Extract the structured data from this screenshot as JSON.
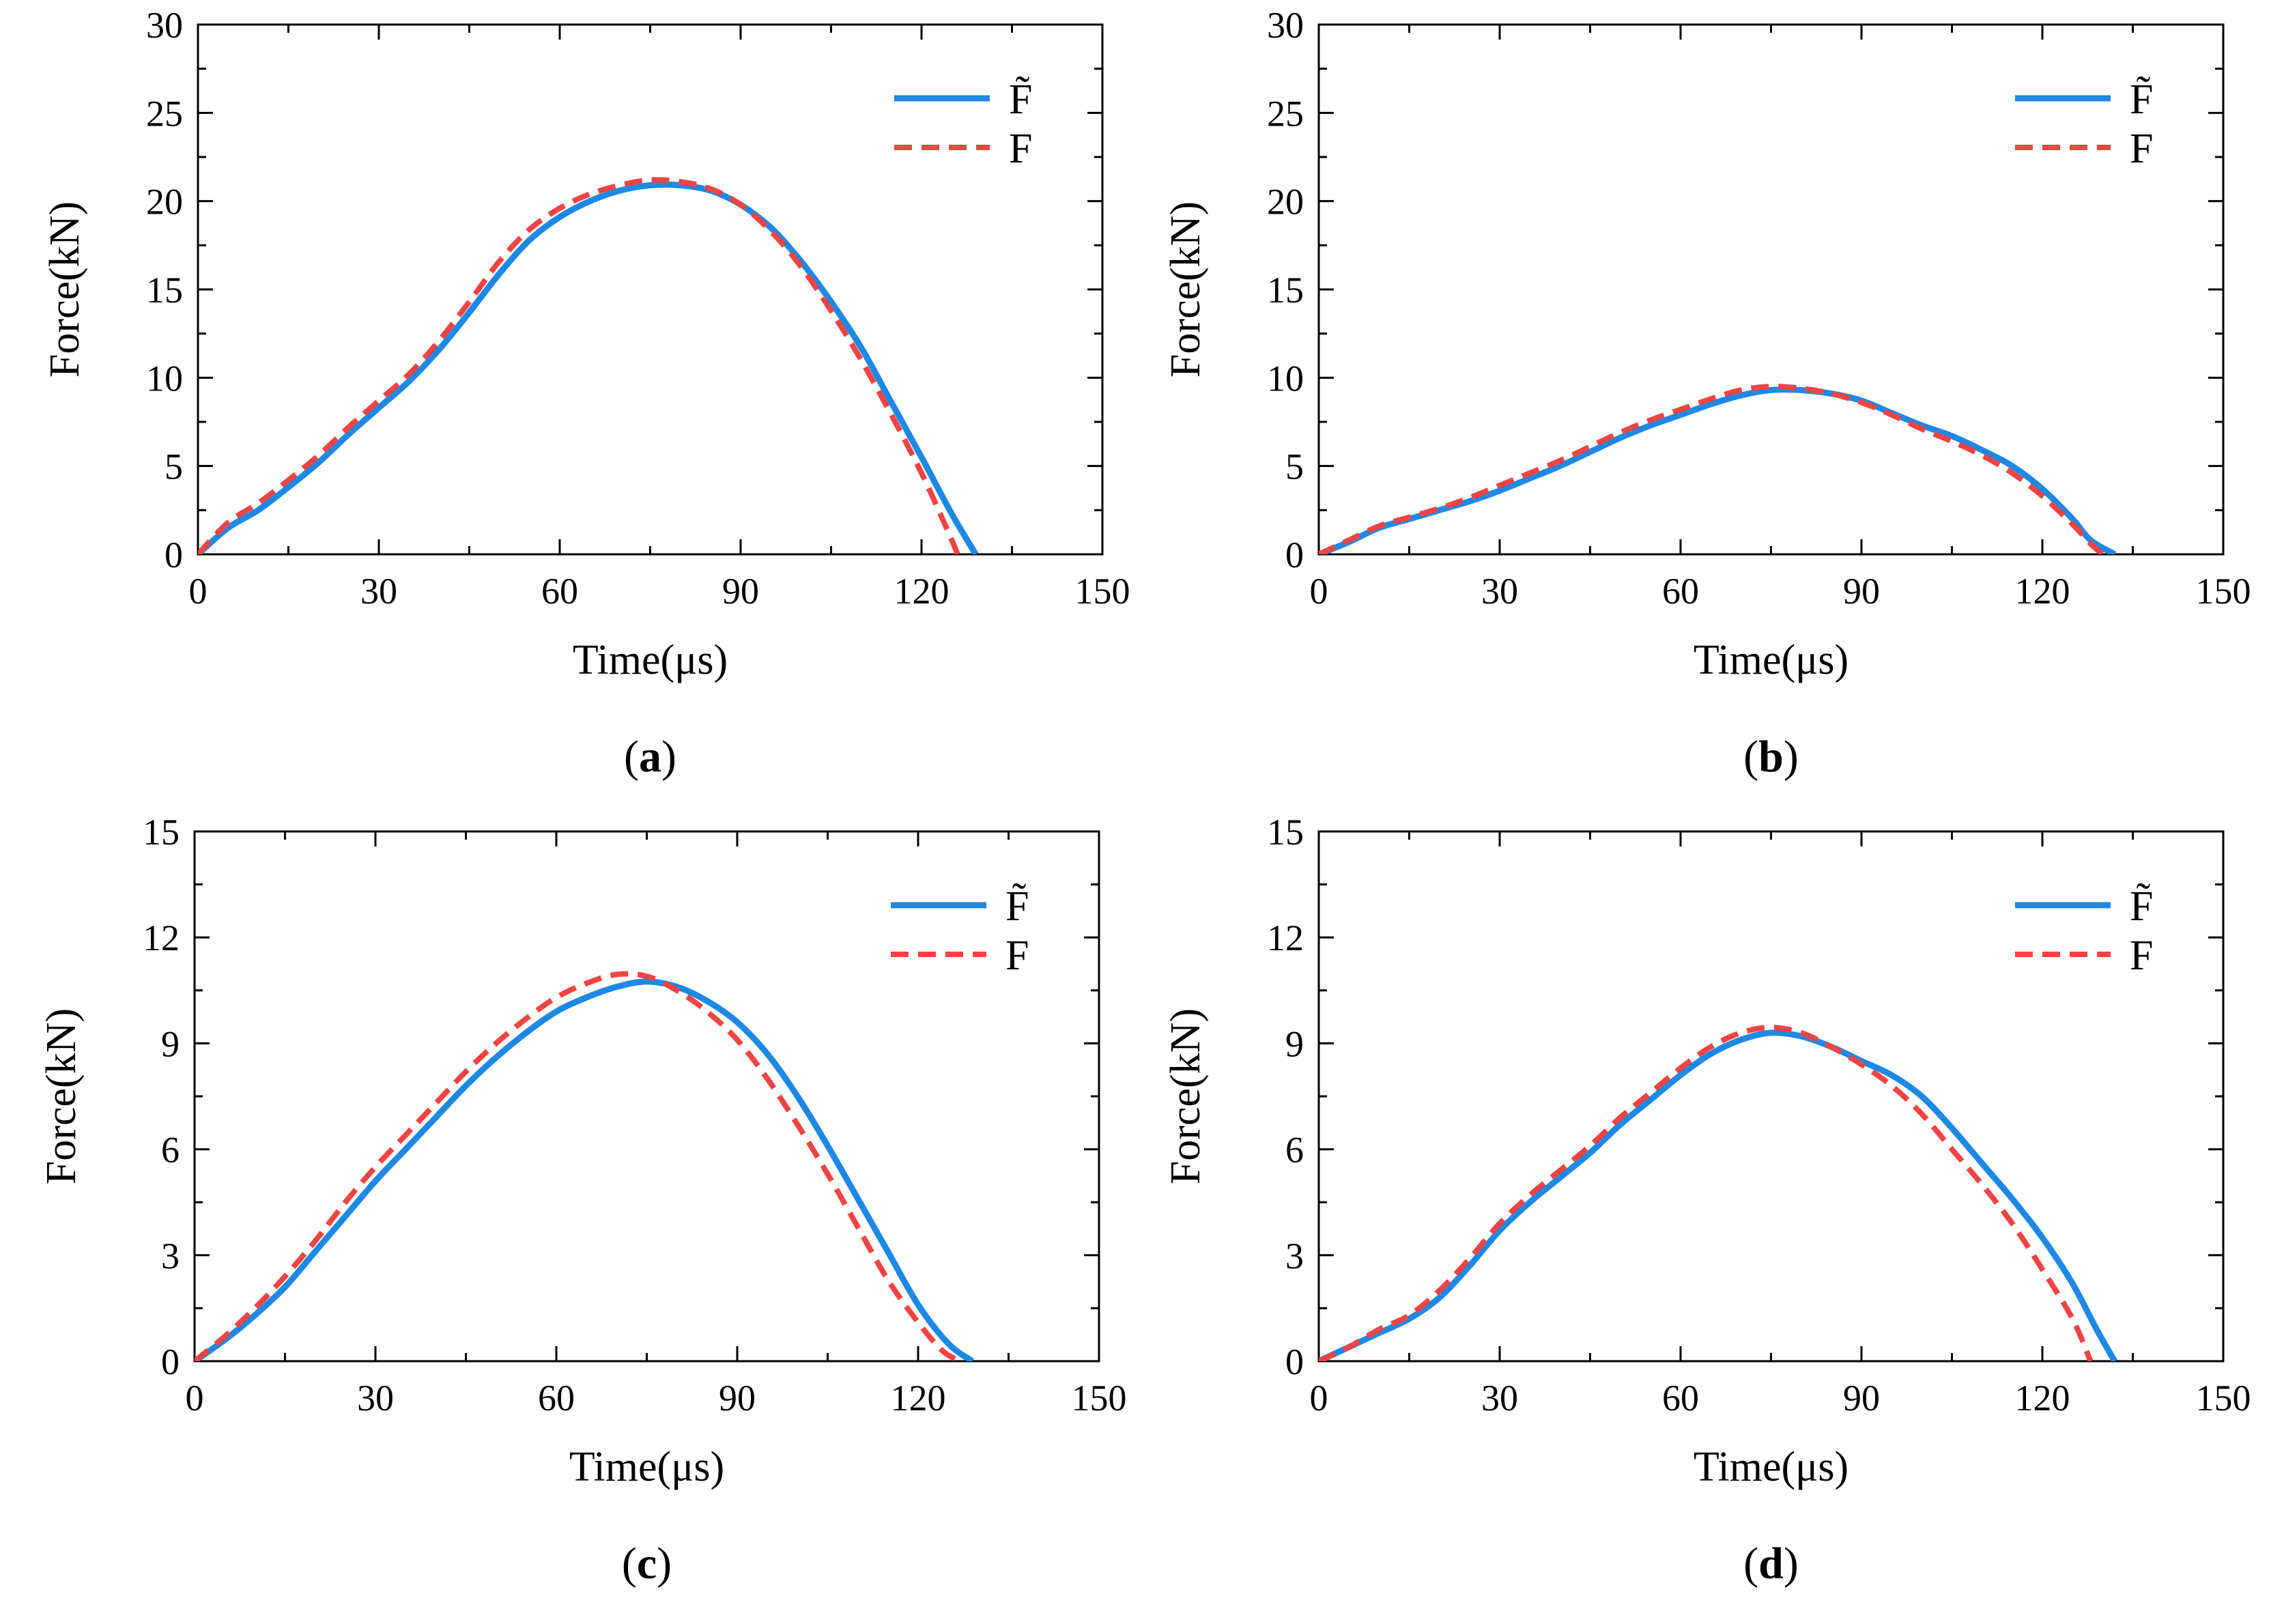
{
  "chart_data": [
    {
      "type": "line",
      "panel_label": "a",
      "xlabel": "Time(μs)",
      "ylabel": "Force(kN)",
      "xlim": [
        0,
        150
      ],
      "ylim": [
        0,
        30
      ],
      "xticks": [
        0,
        30,
        60,
        90,
        120,
        150
      ],
      "yticks": [
        0,
        5,
        10,
        15,
        20,
        25,
        30
      ],
      "grid": false,
      "legend_position": "top-right",
      "series": [
        {
          "name": "F̃",
          "color": "#1e88e5",
          "style": "solid",
          "points": [
            [
              0,
              0
            ],
            [
              5,
              1.5
            ],
            [
              10,
              2.5
            ],
            [
              15,
              3.8
            ],
            [
              20,
              5.2
            ],
            [
              25,
              6.8
            ],
            [
              30,
              8.3
            ],
            [
              35,
              9.8
            ],
            [
              40,
              11.6
            ],
            [
              45,
              13.7
            ],
            [
              50,
              15.9
            ],
            [
              55,
              17.8
            ],
            [
              60,
              19.1
            ],
            [
              65,
              20.0
            ],
            [
              70,
              20.6
            ],
            [
              75,
              20.9
            ],
            [
              80,
              20.9
            ],
            [
              85,
              20.6
            ],
            [
              90,
              19.8
            ],
            [
              95,
              18.5
            ],
            [
              100,
              16.6
            ],
            [
              105,
              14.3
            ],
            [
              110,
              11.7
            ],
            [
              115,
              8.6
            ],
            [
              120,
              5.5
            ],
            [
              125,
              2.3
            ],
            [
              129,
              0
            ]
          ]
        },
        {
          "name": "F",
          "color": "#ef4444",
          "style": "dashed",
          "points": [
            [
              0,
              0
            ],
            [
              5,
              1.8
            ],
            [
              10,
              2.9
            ],
            [
              15,
              4.2
            ],
            [
              20,
              5.6
            ],
            [
              25,
              7.2
            ],
            [
              30,
              8.7
            ],
            [
              35,
              10.2
            ],
            [
              40,
              12.1
            ],
            [
              45,
              14.3
            ],
            [
              50,
              16.6
            ],
            [
              55,
              18.4
            ],
            [
              60,
              19.6
            ],
            [
              65,
              20.4
            ],
            [
              70,
              20.9
            ],
            [
              75,
              21.2
            ],
            [
              80,
              21.1
            ],
            [
              85,
              20.7
            ],
            [
              90,
              19.8
            ],
            [
              95,
              18.3
            ],
            [
              100,
              16.3
            ],
            [
              105,
              13.8
            ],
            [
              110,
              11.0
            ],
            [
              115,
              7.9
            ],
            [
              120,
              4.6
            ],
            [
              124,
              1.6
            ],
            [
              126,
              0
            ]
          ]
        }
      ]
    },
    {
      "type": "line",
      "panel_label": "b",
      "xlabel": "Time(μs)",
      "ylabel": "Force(kN)",
      "xlim": [
        0,
        150
      ],
      "ylim": [
        0,
        30
      ],
      "xticks": [
        0,
        30,
        60,
        90,
        120,
        150
      ],
      "yticks": [
        0,
        5,
        10,
        15,
        20,
        25,
        30
      ],
      "grid": false,
      "legend_position": "top-right",
      "series": [
        {
          "name": "F̃",
          "color": "#1e88e5",
          "style": "solid",
          "points": [
            [
              0,
              0
            ],
            [
              5,
              0.7
            ],
            [
              10,
              1.5
            ],
            [
              15,
              2.0
            ],
            [
              20,
              2.5
            ],
            [
              25,
              3.0
            ],
            [
              30,
              3.6
            ],
            [
              35,
              4.3
            ],
            [
              40,
              5.0
            ],
            [
              45,
              5.8
            ],
            [
              50,
              6.6
            ],
            [
              55,
              7.3
            ],
            [
              60,
              7.9
            ],
            [
              65,
              8.5
            ],
            [
              70,
              9.0
            ],
            [
              75,
              9.3
            ],
            [
              80,
              9.3
            ],
            [
              85,
              9.1
            ],
            [
              90,
              8.7
            ],
            [
              95,
              8.0
            ],
            [
              100,
              7.3
            ],
            [
              105,
              6.7
            ],
            [
              110,
              5.9
            ],
            [
              115,
              5.0
            ],
            [
              120,
              3.7
            ],
            [
              125,
              2.0
            ],
            [
              128,
              0.8
            ],
            [
              132,
              0
            ]
          ]
        },
        {
          "name": "F",
          "color": "#ef4444",
          "style": "dashed",
          "points": [
            [
              0,
              0
            ],
            [
              5,
              0.8
            ],
            [
              10,
              1.6
            ],
            [
              15,
              2.1
            ],
            [
              20,
              2.6
            ],
            [
              25,
              3.2
            ],
            [
              30,
              3.9
            ],
            [
              35,
              4.6
            ],
            [
              40,
              5.3
            ],
            [
              45,
              6.1
            ],
            [
              50,
              6.9
            ],
            [
              55,
              7.6
            ],
            [
              60,
              8.2
            ],
            [
              65,
              8.8
            ],
            [
              70,
              9.3
            ],
            [
              75,
              9.5
            ],
            [
              80,
              9.4
            ],
            [
              85,
              9.1
            ],
            [
              90,
              8.6
            ],
            [
              95,
              7.9
            ],
            [
              100,
              7.1
            ],
            [
              105,
              6.4
            ],
            [
              110,
              5.6
            ],
            [
              115,
              4.6
            ],
            [
              120,
              3.3
            ],
            [
              125,
              1.7
            ],
            [
              128,
              0.6
            ],
            [
              130,
              0
            ]
          ]
        }
      ]
    },
    {
      "type": "line",
      "panel_label": "c",
      "xlabel": "Time(μs)",
      "ylabel": "Force(kN)",
      "xlim": [
        0,
        150
      ],
      "ylim": [
        0,
        15
      ],
      "xticks": [
        0,
        30,
        60,
        90,
        120,
        150
      ],
      "yticks": [
        0,
        3,
        6,
        9,
        12,
        15
      ],
      "grid": false,
      "legend_position": "top-right",
      "series": [
        {
          "name": "F̃",
          "color": "#1e88e5",
          "style": "solid",
          "points": [
            [
              0,
              0
            ],
            [
              5,
              0.6
            ],
            [
              10,
              1.3
            ],
            [
              15,
              2.1
            ],
            [
              20,
              3.1
            ],
            [
              25,
              4.1
            ],
            [
              30,
              5.1
            ],
            [
              35,
              6.0
            ],
            [
              40,
              6.9
            ],
            [
              45,
              7.8
            ],
            [
              50,
              8.6
            ],
            [
              55,
              9.3
            ],
            [
              60,
              9.9
            ],
            [
              65,
              10.3
            ],
            [
              70,
              10.6
            ],
            [
              75,
              10.75
            ],
            [
              80,
              10.6
            ],
            [
              85,
              10.2
            ],
            [
              90,
              9.6
            ],
            [
              95,
              8.7
            ],
            [
              100,
              7.5
            ],
            [
              105,
              6.1
            ],
            [
              110,
              4.6
            ],
            [
              115,
              3.1
            ],
            [
              120,
              1.6
            ],
            [
              125,
              0.5
            ],
            [
              129,
              0
            ]
          ]
        },
        {
          "name": "F",
          "color": "#ef4444",
          "style": "dashed",
          "points": [
            [
              0,
              0
            ],
            [
              5,
              0.7
            ],
            [
              10,
              1.5
            ],
            [
              15,
              2.4
            ],
            [
              20,
              3.4
            ],
            [
              25,
              4.5
            ],
            [
              30,
              5.5
            ],
            [
              35,
              6.4
            ],
            [
              40,
              7.3
            ],
            [
              45,
              8.2
            ],
            [
              50,
              9.0
            ],
            [
              55,
              9.7
            ],
            [
              60,
              10.3
            ],
            [
              65,
              10.7
            ],
            [
              70,
              10.95
            ],
            [
              75,
              10.9
            ],
            [
              80,
              10.5
            ],
            [
              85,
              9.9
            ],
            [
              90,
              9.1
            ],
            [
              95,
              8.0
            ],
            [
              100,
              6.7
            ],
            [
              105,
              5.3
            ],
            [
              110,
              3.8
            ],
            [
              115,
              2.3
            ],
            [
              120,
              1.1
            ],
            [
              124,
              0.3
            ],
            [
              127,
              0
            ]
          ]
        }
      ]
    },
    {
      "type": "line",
      "panel_label": "d",
      "xlabel": "Time(μs)",
      "ylabel": "Force(kN)",
      "xlim": [
        0,
        150
      ],
      "ylim": [
        0,
        15
      ],
      "xticks": [
        0,
        30,
        60,
        90,
        120,
        150
      ],
      "yticks": [
        0,
        3,
        6,
        9,
        12,
        15
      ],
      "grid": false,
      "legend_position": "top-right",
      "series": [
        {
          "name": "F̃",
          "color": "#1e88e5",
          "style": "solid",
          "points": [
            [
              0,
              0
            ],
            [
              5,
              0.4
            ],
            [
              10,
              0.8
            ],
            [
              15,
              1.2
            ],
            [
              20,
              1.8
            ],
            [
              25,
              2.7
            ],
            [
              30,
              3.7
            ],
            [
              35,
              4.5
            ],
            [
              40,
              5.2
            ],
            [
              45,
              5.9
            ],
            [
              50,
              6.7
            ],
            [
              55,
              7.4
            ],
            [
              60,
              8.1
            ],
            [
              65,
              8.7
            ],
            [
              70,
              9.1
            ],
            [
              75,
              9.3
            ],
            [
              80,
              9.2
            ],
            [
              85,
              8.9
            ],
            [
              90,
              8.5
            ],
            [
              95,
              8.1
            ],
            [
              100,
              7.5
            ],
            [
              105,
              6.6
            ],
            [
              110,
              5.6
            ],
            [
              115,
              4.6
            ],
            [
              120,
              3.5
            ],
            [
              125,
              2.2
            ],
            [
              129,
              0.9
            ],
            [
              132,
              0
            ]
          ]
        },
        {
          "name": "F",
          "color": "#ef4444",
          "style": "dashed",
          "points": [
            [
              0,
              0
            ],
            [
              5,
              0.4
            ],
            [
              10,
              0.9
            ],
            [
              15,
              1.3
            ],
            [
              20,
              2.0
            ],
            [
              25,
              2.9
            ],
            [
              30,
              3.9
            ],
            [
              35,
              4.7
            ],
            [
              40,
              5.4
            ],
            [
              45,
              6.1
            ],
            [
              50,
              6.9
            ],
            [
              55,
              7.6
            ],
            [
              60,
              8.3
            ],
            [
              65,
              8.9
            ],
            [
              70,
              9.3
            ],
            [
              75,
              9.45
            ],
            [
              80,
              9.3
            ],
            [
              85,
              8.9
            ],
            [
              90,
              8.4
            ],
            [
              95,
              7.8
            ],
            [
              100,
              7.0
            ],
            [
              105,
              6.0
            ],
            [
              110,
              5.0
            ],
            [
              115,
              3.9
            ],
            [
              120,
              2.6
            ],
            [
              125,
              1.2
            ],
            [
              128,
              0
            ]
          ]
        }
      ]
    }
  ]
}
